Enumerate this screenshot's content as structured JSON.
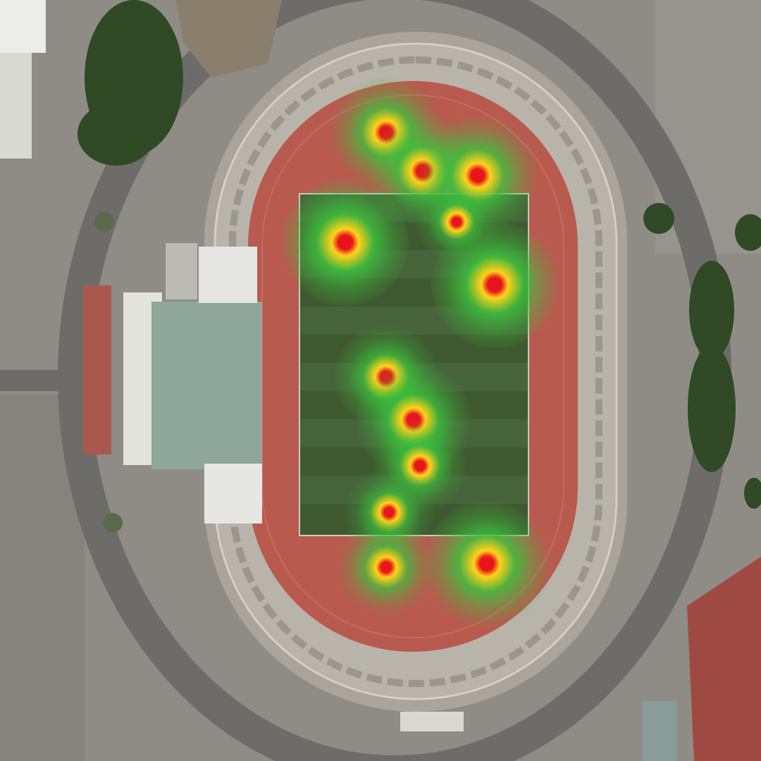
{
  "colors": {
    "ground": "#8f8c86",
    "asphalt": "#6e6c69",
    "track": "#b85a4e",
    "pitch": "#3f5a30",
    "stand": "#b3afa6",
    "roof_green": "#8fa79a",
    "roof_white": "#e6e6e2",
    "trees": "#2f4a25",
    "heat_core": "#e8141c",
    "heat_mid": "#ffd21a",
    "heat_outer": "#3cc23c"
  },
  "heatmap": {
    "type": "kernel-density",
    "points": [
      {
        "id": "h1",
        "intensity": 0.75
      },
      {
        "id": "h2",
        "intensity": 0.75
      },
      {
        "id": "h3",
        "intensity": 0.85
      },
      {
        "id": "h4",
        "intensity": 0.35
      },
      {
        "id": "h5",
        "intensity": 1.0
      },
      {
        "id": "h6",
        "intensity": 1.0
      },
      {
        "id": "h7",
        "intensity": 0.65
      },
      {
        "id": "h8",
        "intensity": 0.8
      },
      {
        "id": "h9",
        "intensity": 0.5
      },
      {
        "id": "h10",
        "intensity": 0.45
      },
      {
        "id": "h11",
        "intensity": 0.55
      },
      {
        "id": "h12",
        "intensity": 0.95
      }
    ]
  }
}
